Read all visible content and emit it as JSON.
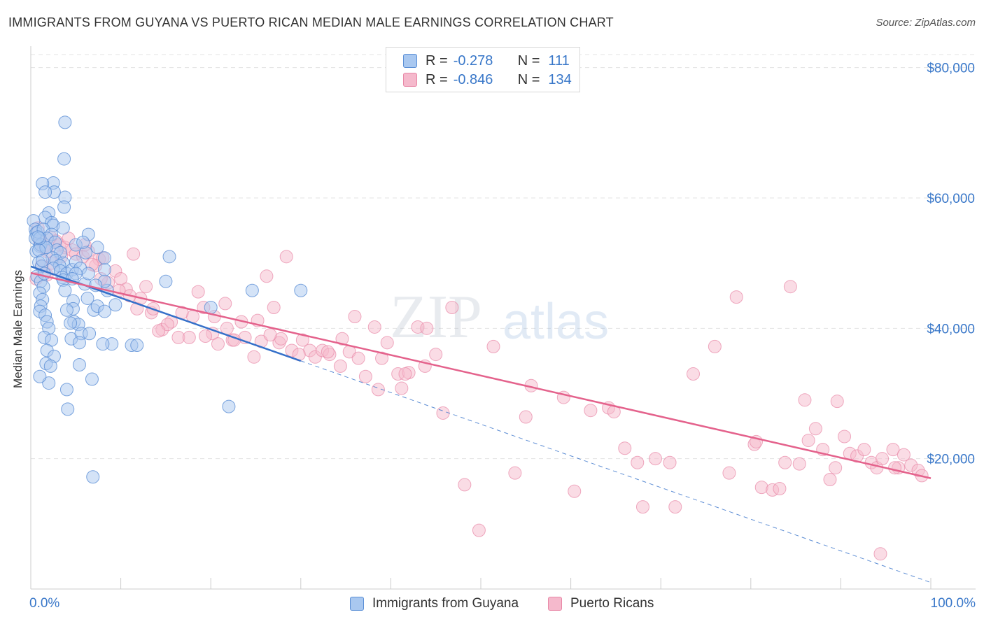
{
  "header": {
    "title": "IMMIGRANTS FROM GUYANA VS PUERTO RICAN MEDIAN MALE EARNINGS CORRELATION CHART",
    "source": "Source: ZipAtlas.com"
  },
  "legend_top": {
    "r_label": "R =",
    "n_label": "N =",
    "rows": [
      {
        "r": "-0.278",
        "n": "111"
      },
      {
        "r": "-0.846",
        "n": "134"
      }
    ]
  },
  "legend_bottom": [
    "Immigrants from Guyana",
    "Puerto Ricans"
  ],
  "x_axis": {
    "min_label": "0.0%",
    "max_label": "100.0%"
  },
  "watermark": {
    "zip": "ZIP",
    "atlas": "atlas"
  },
  "colors": {
    "blue_fill": "#a9c8f0",
    "blue_stroke": "#5b8fd6",
    "blue_line": "#3570c9",
    "pink_fill": "#f5b9cc",
    "pink_stroke": "#e887a6",
    "pink_line": "#e4628c",
    "tick_text": "#3a78c9",
    "grid": "#e3e3e3"
  },
  "chart_data": {
    "type": "scatter",
    "title": "IMMIGRANTS FROM GUYANA VS PUERTO RICAN MEDIAN MALE EARNINGS CORRELATION CHART",
    "xlabel": "",
    "ylabel": "Median Male Earnings",
    "xlim": [
      0,
      100
    ],
    "ylim": [
      0,
      82000
    ],
    "y_ticks": [
      20000,
      40000,
      60000,
      80000
    ],
    "y_tick_labels": [
      "$20,000",
      "$40,000",
      "$60,000",
      "$80,000"
    ],
    "x_tick_labels": [
      "0.0%",
      "100.0%"
    ],
    "grid": true,
    "legend_position": "top-center",
    "series": [
      {
        "name": "Immigrants from Guyana",
        "r": -0.278,
        "n": 111,
        "trend": {
          "x0": 0,
          "y0": 49500,
          "x1": 30,
          "y1": 35000
        },
        "trend_extended": {
          "x0": 30,
          "y0": 35000,
          "x1": 100,
          "y1": 1000
        },
        "points": [
          [
            0.3,
            56500
          ],
          [
            0.5,
            55200
          ],
          [
            0.6,
            54600
          ],
          [
            0.5,
            53800
          ],
          [
            0.8,
            54800
          ],
          [
            1.0,
            52600
          ],
          [
            0.6,
            51800
          ],
          [
            0.9,
            50100
          ],
          [
            1.2,
            49500
          ],
          [
            0.7,
            48000
          ],
          [
            1.1,
            47200
          ],
          [
            1.4,
            46400
          ],
          [
            1.0,
            45400
          ],
          [
            1.3,
            44400
          ],
          [
            1.1,
            43400
          ],
          [
            1.0,
            42600
          ],
          [
            1.6,
            42000
          ],
          [
            1.8,
            41000
          ],
          [
            2.0,
            40000
          ],
          [
            1.5,
            38600
          ],
          [
            2.3,
            38200
          ],
          [
            1.8,
            36600
          ],
          [
            2.6,
            35700
          ],
          [
            1.7,
            34600
          ],
          [
            2.2,
            34200
          ],
          [
            2.0,
            31600
          ],
          [
            4.0,
            30600
          ],
          [
            4.1,
            27600
          ],
          [
            2.5,
            62300
          ],
          [
            2.6,
            60900
          ],
          [
            3.8,
            71600
          ],
          [
            3.7,
            66000
          ],
          [
            1.3,
            62200
          ],
          [
            1.6,
            60900
          ],
          [
            3.8,
            60100
          ],
          [
            3.7,
            58600
          ],
          [
            2.0,
            57700
          ],
          [
            1.6,
            57000
          ],
          [
            2.3,
            56200
          ],
          [
            2.5,
            55800
          ],
          [
            1.4,
            55200
          ],
          [
            2.3,
            54400
          ],
          [
            1.8,
            53800
          ],
          [
            2.7,
            53200
          ],
          [
            1.1,
            52800
          ],
          [
            1.7,
            52400
          ],
          [
            2.9,
            52000
          ],
          [
            3.3,
            51600
          ],
          [
            2.4,
            50800
          ],
          [
            2.8,
            50400
          ],
          [
            3.6,
            50000
          ],
          [
            3.2,
            49600
          ],
          [
            2.5,
            49200
          ],
          [
            3.3,
            48800
          ],
          [
            4.0,
            48400
          ],
          [
            3.5,
            47800
          ],
          [
            3.6,
            47400
          ],
          [
            4.6,
            49000
          ],
          [
            5.0,
            50200
          ],
          [
            5.5,
            49200
          ],
          [
            5.0,
            48400
          ],
          [
            4.6,
            47600
          ],
          [
            3.8,
            45800
          ],
          [
            4.7,
            44200
          ],
          [
            4.7,
            43000
          ],
          [
            4.8,
            41000
          ],
          [
            5.3,
            40600
          ],
          [
            4.5,
            38400
          ],
          [
            4.0,
            42800
          ],
          [
            6.0,
            46800
          ],
          [
            6.3,
            44600
          ],
          [
            5.6,
            39200
          ],
          [
            5.4,
            37800
          ],
          [
            6.5,
            39200
          ],
          [
            7.0,
            42800
          ],
          [
            7.4,
            43400
          ],
          [
            8.5,
            45800
          ],
          [
            8.2,
            47200
          ],
          [
            8.2,
            49000
          ],
          [
            8.2,
            42600
          ],
          [
            9.4,
            43600
          ],
          [
            9.0,
            37600
          ],
          [
            8.0,
            37600
          ],
          [
            11.2,
            37400
          ],
          [
            11.8,
            37400
          ],
          [
            15.4,
            51000
          ],
          [
            15.0,
            47200
          ],
          [
            20.0,
            43200
          ],
          [
            22.0,
            28000
          ],
          [
            24.6,
            45800
          ],
          [
            30.0,
            45800
          ],
          [
            8.2,
            50800
          ],
          [
            6.4,
            54400
          ],
          [
            5.0,
            52800
          ],
          [
            3.6,
            55400
          ],
          [
            1.7,
            52400
          ],
          [
            0.9,
            52000
          ],
          [
            1.0,
            53800
          ],
          [
            0.8,
            54000
          ],
          [
            1.3,
            50400
          ],
          [
            1.5,
            48400
          ],
          [
            6.4,
            48400
          ],
          [
            7.4,
            52400
          ],
          [
            1.0,
            32600
          ],
          [
            5.4,
            34400
          ],
          [
            6.8,
            32200
          ],
          [
            6.9,
            17200
          ],
          [
            7.2,
            46600
          ],
          [
            6.1,
            51600
          ],
          [
            5.8,
            53200
          ],
          [
            4.4,
            40800
          ]
        ]
      },
      {
        "name": "Puerto Ricans",
        "r": -0.846,
        "n": 134,
        "trend": {
          "x0": 0,
          "y0": 48500,
          "x1": 100,
          "y1": 17000
        },
        "points": [
          [
            0.8,
            55400
          ],
          [
            1.0,
            53400
          ],
          [
            1.4,
            52400
          ],
          [
            1.8,
            51800
          ],
          [
            2.2,
            54000
          ],
          [
            2.8,
            53400
          ],
          [
            3.2,
            52800
          ],
          [
            3.8,
            52400
          ],
          [
            4.6,
            52000
          ],
          [
            5.0,
            51400
          ],
          [
            5.8,
            51000
          ],
          [
            6.4,
            51800
          ],
          [
            7.6,
            50600
          ],
          [
            8.0,
            50800
          ],
          [
            7.2,
            49600
          ],
          [
            9.4,
            48800
          ],
          [
            10.0,
            47600
          ],
          [
            11.4,
            51400
          ],
          [
            10.6,
            46000
          ],
          [
            11.8,
            43000
          ],
          [
            12.2,
            44600
          ],
          [
            13.4,
            42400
          ],
          [
            14.6,
            39800
          ],
          [
            15.6,
            41000
          ],
          [
            16.4,
            38600
          ],
          [
            17.6,
            38600
          ],
          [
            18.6,
            45600
          ],
          [
            19.2,
            43200
          ],
          [
            20.2,
            39200
          ],
          [
            20.8,
            37600
          ],
          [
            21.8,
            40000
          ],
          [
            22.4,
            38200
          ],
          [
            23.4,
            41000
          ],
          [
            24.8,
            35600
          ],
          [
            25.6,
            38000
          ],
          [
            26.2,
            48000
          ],
          [
            27.0,
            43200
          ],
          [
            27.6,
            37800
          ],
          [
            28.4,
            51000
          ],
          [
            29.0,
            36600
          ],
          [
            30.2,
            38200
          ],
          [
            31.0,
            36600
          ],
          [
            31.6,
            35600
          ],
          [
            32.4,
            36600
          ],
          [
            33.2,
            36000
          ],
          [
            34.6,
            38400
          ],
          [
            35.4,
            36400
          ],
          [
            36.4,
            35400
          ],
          [
            37.2,
            32600
          ],
          [
            38.2,
            40200
          ],
          [
            39.0,
            35400
          ],
          [
            39.6,
            37800
          ],
          [
            40.8,
            33000
          ],
          [
            41.2,
            30800
          ],
          [
            42.0,
            33200
          ],
          [
            43.0,
            40200
          ],
          [
            43.8,
            34200
          ],
          [
            45.0,
            36000
          ],
          [
            45.8,
            27000
          ],
          [
            46.8,
            43200
          ],
          [
            48.2,
            16000
          ],
          [
            49.8,
            9000
          ],
          [
            51.4,
            37200
          ],
          [
            53.8,
            17800
          ],
          [
            55.6,
            31200
          ],
          [
            59.2,
            29400
          ],
          [
            60.4,
            15000
          ],
          [
            62.2,
            27400
          ],
          [
            64.2,
            27800
          ],
          [
            66.0,
            21600
          ],
          [
            67.4,
            19400
          ],
          [
            68.0,
            12600
          ],
          [
            69.4,
            20000
          ],
          [
            71.0,
            19400
          ],
          [
            73.6,
            33000
          ],
          [
            76.0,
            37200
          ],
          [
            77.6,
            17800
          ],
          [
            78.4,
            44800
          ],
          [
            80.4,
            22200
          ],
          [
            81.2,
            15600
          ],
          [
            82.4,
            15200
          ],
          [
            83.2,
            15400
          ],
          [
            83.8,
            19400
          ],
          [
            84.4,
            46400
          ],
          [
            85.4,
            19200
          ],
          [
            86.0,
            29000
          ],
          [
            86.4,
            22800
          ],
          [
            87.2,
            24600
          ],
          [
            88.0,
            21400
          ],
          [
            88.8,
            16800
          ],
          [
            89.4,
            18600
          ],
          [
            89.6,
            28800
          ],
          [
            90.4,
            23400
          ],
          [
            91.0,
            20800
          ],
          [
            91.8,
            20400
          ],
          [
            92.6,
            21400
          ],
          [
            93.4,
            19400
          ],
          [
            94.0,
            18600
          ],
          [
            94.6,
            20000
          ],
          [
            95.8,
            21400
          ],
          [
            96.4,
            18600
          ],
          [
            97.0,
            20600
          ],
          [
            97.8,
            19000
          ],
          [
            98.6,
            18200
          ],
          [
            99.0,
            17400
          ],
          [
            96.0,
            18600
          ],
          [
            94.4,
            5400
          ],
          [
            80.6,
            22600
          ],
          [
            71.6,
            12600
          ],
          [
            64.8,
            27200
          ],
          [
            55.0,
            26400
          ],
          [
            44.0,
            40000
          ],
          [
            41.6,
            33000
          ],
          [
            38.6,
            30600
          ],
          [
            36.0,
            41800
          ],
          [
            34.4,
            34200
          ],
          [
            33.0,
            36400
          ],
          [
            29.8,
            36000
          ],
          [
            27.8,
            38400
          ],
          [
            26.6,
            39000
          ],
          [
            25.2,
            41200
          ],
          [
            23.8,
            38600
          ],
          [
            22.6,
            38200
          ],
          [
            21.6,
            43800
          ],
          [
            20.4,
            41800
          ],
          [
            19.4,
            38800
          ],
          [
            18.0,
            41800
          ],
          [
            16.8,
            42400
          ],
          [
            15.2,
            40600
          ],
          [
            14.2,
            39600
          ],
          [
            13.6,
            43000
          ],
          [
            12.8,
            46400
          ],
          [
            11.0,
            45000
          ],
          [
            9.8,
            45800
          ],
          [
            8.6,
            47000
          ],
          [
            7.8,
            47600
          ],
          [
            6.8,
            49800
          ],
          [
            6.0,
            52800
          ],
          [
            4.2,
            53800
          ],
          [
            3.4,
            51000
          ],
          [
            2.4,
            50000
          ],
          [
            1.8,
            48200
          ],
          [
            1.2,
            49600
          ],
          [
            0.6,
            47600
          ]
        ]
      }
    ]
  }
}
